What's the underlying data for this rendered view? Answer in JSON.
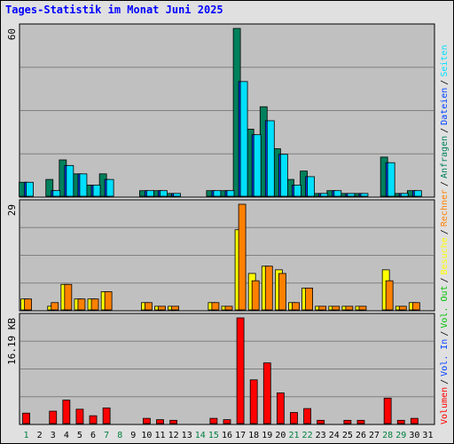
{
  "chart_data": {
    "type": "bar",
    "title": "Tages-Statistik im Monat Juni 2025",
    "categories": [
      "1",
      "2",
      "3",
      "4",
      "5",
      "6",
      "7",
      "8",
      "9",
      "10",
      "11",
      "12",
      "13",
      "14",
      "15",
      "16",
      "17",
      "18",
      "19",
      "20",
      "21",
      "22",
      "23",
      "24",
      "25",
      "26",
      "27",
      "28",
      "29",
      "30",
      "31"
    ],
    "weekend": [
      true,
      false,
      false,
      false,
      false,
      false,
      true,
      true,
      false,
      false,
      false,
      false,
      false,
      true,
      true,
      false,
      false,
      false,
      false,
      false,
      true,
      true,
      false,
      false,
      false,
      false,
      false,
      true,
      true,
      false,
      false
    ],
    "weekend_color": "#008040",
    "legend_separator": "/",
    "panels": [
      {
        "ylim": [
          0,
          60
        ],
        "yticks": [
          60
        ],
        "series": [
          {
            "name": "Anfragen",
            "color": "#00805c",
            "values": [
              5,
              0,
              6,
              13,
              8,
              4,
              8,
              0,
              0,
              2,
              2,
              1,
              0,
              0,
              2,
              2,
              60,
              24,
              32,
              17,
              6,
              9,
              1,
              2,
              1,
              1,
              0,
              14,
              1,
              2,
              0
            ]
          },
          {
            "name": "Dateien",
            "color": "#0040ff",
            "values": [
              5,
              0,
              2,
              11,
              8,
              4,
              6,
              0,
              0,
              2,
              2,
              1,
              0,
              0,
              2,
              2,
              41,
              22,
              27,
              15,
              4,
              7,
              1,
              2,
              1,
              1,
              0,
              12,
              1,
              2,
              0
            ]
          },
          {
            "name": "Seiten",
            "color": "#00e0ff",
            "values": [
              5,
              0,
              2,
              11,
              8,
              4,
              6,
              0,
              0,
              2,
              2,
              1,
              0,
              0,
              2,
              2,
              41,
              22,
              27,
              15,
              4,
              7,
              1,
              2,
              1,
              1,
              0,
              12,
              1,
              2,
              0
            ]
          }
        ]
      },
      {
        "ylim": [
          0,
          29
        ],
        "yticks": [
          29
        ],
        "series": [
          {
            "name": "Besuche",
            "color": "#ffff00",
            "values": [
              3,
              0,
              1,
              7,
              3,
              3,
              5,
              0,
              0,
              2,
              1,
              1,
              0,
              0,
              2,
              1,
              22,
              10,
              12,
              11,
              2,
              6,
              1,
              1,
              1,
              1,
              0,
              11,
              1,
              2,
              0
            ]
          },
          {
            "name": "Rechner",
            "color": "#ff8000",
            "values": [
              3,
              0,
              2,
              7,
              3,
              3,
              5,
              0,
              0,
              2,
              1,
              1,
              0,
              0,
              2,
              1,
              29,
              8,
              12,
              10,
              2,
              6,
              1,
              1,
              1,
              1,
              0,
              8,
              1,
              2,
              0
            ]
          }
        ]
      },
      {
        "ylim": [
          0,
          16.19
        ],
        "yticks": [
          {
            "value": 16.19,
            "label": "16.19 KB"
          }
        ],
        "series": [
          {
            "name": "Volumen",
            "color": "#ff0000",
            "values": [
              1.6,
              0,
              1.9,
              3.6,
              2.2,
              1.2,
              2.4,
              0,
              0,
              0.8,
              0.6,
              0.5,
              0,
              0,
              0.8,
              0.6,
              16.19,
              6.7,
              9.3,
              4.7,
              1.7,
              2.3,
              0.5,
              0,
              0.5,
              0.5,
              0,
              3.9,
              0.5,
              0.8,
              0
            ]
          },
          {
            "name": "Vol. In",
            "color": "#0040ff"
          },
          {
            "name": "Vol. Out",
            "color": "#00c000"
          }
        ]
      }
    ]
  }
}
